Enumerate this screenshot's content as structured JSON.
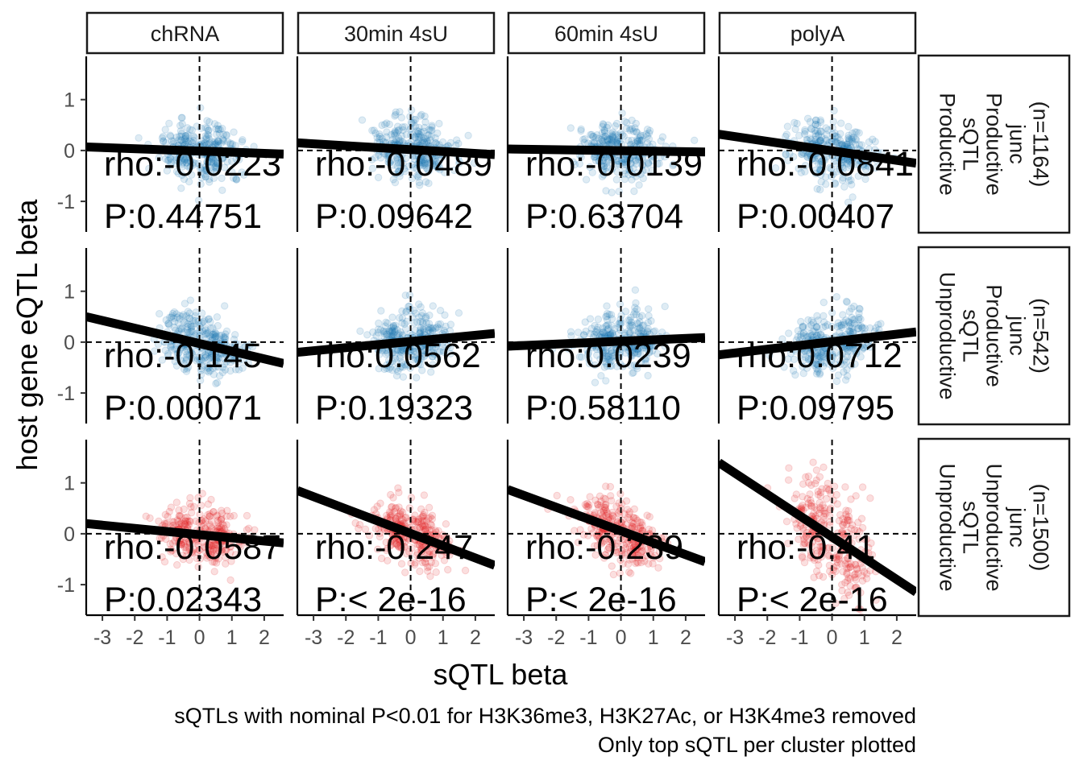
{
  "chart_data": {
    "type": "scatter",
    "layout": "facet-grid",
    "xlabel": "sQTL beta",
    "ylabel": "host gene eQTL beta",
    "xlim": [
      -3.5,
      2.6
    ],
    "ylim": [
      -1.6,
      1.85
    ],
    "x_ticks": [
      -3,
      -2,
      -1,
      0,
      1,
      2
    ],
    "x_tick_labels": [
      "-3",
      "-2",
      "-1",
      "0",
      "1",
      "2"
    ],
    "y_ticks": [
      -1,
      0,
      1
    ],
    "y_tick_labels": [
      "-1",
      "0",
      "1"
    ],
    "reference_lines": {
      "x": 0,
      "y": 0,
      "style": "dashed"
    },
    "columns": [
      "chRNA",
      "30min 4sU",
      "60min 4sU",
      "polyA"
    ],
    "rows": [
      {
        "label_lines": [
          "Productive",
          "sQTL",
          "Productive",
          "junc",
          "(n=1164)"
        ],
        "color": "#1f77b4"
      },
      {
        "label_lines": [
          "Unproductive",
          "sQTL",
          "Productive",
          "junc",
          "(n=542)"
        ],
        "color": "#1f77b4"
      },
      {
        "label_lines": [
          "Unproductive",
          "sQTL",
          "Unproductive",
          "junc",
          "(n=1500)"
        ],
        "color": "#e31a1c"
      }
    ],
    "panels": [
      [
        {
          "rho": "rho:-0.0223",
          "p": "P:0.44751",
          "fit": {
            "y_at_xmin": 0.07,
            "y_at_xmax": -0.07
          }
        },
        {
          "rho": "rho:-0.0489",
          "p": "P:0.09642",
          "fit": {
            "y_at_xmin": 0.15,
            "y_at_xmax": -0.08
          }
        },
        {
          "rho": "rho:-0.0139",
          "p": "P:0.63704",
          "fit": {
            "y_at_xmin": 0.03,
            "y_at_xmax": -0.03
          }
        },
        {
          "rho": "rho:-0.0841",
          "p": "P:0.00407",
          "fit": {
            "y_at_xmin": 0.32,
            "y_at_xmax": -0.25
          }
        }
      ],
      [
        {
          "rho": "rho:-0.145",
          "p": "P:0.00071",
          "fit": {
            "y_at_xmin": 0.5,
            "y_at_xmax": -0.42
          }
        },
        {
          "rho": "rho:0.0562",
          "p": "P:0.19323",
          "fit": {
            "y_at_xmin": -0.2,
            "y_at_xmax": 0.17
          }
        },
        {
          "rho": "rho:0.0239",
          "p": "P:0.58110",
          "fit": {
            "y_at_xmin": -0.08,
            "y_at_xmax": 0.09
          }
        },
        {
          "rho": "rho:0.0712",
          "p": "P:0.09795",
          "fit": {
            "y_at_xmin": -0.25,
            "y_at_xmax": 0.2
          }
        }
      ],
      [
        {
          "rho": "rho:-0.0587",
          "p": "P:0.02343",
          "fit": {
            "y_at_xmin": 0.2,
            "y_at_xmax": -0.18
          }
        },
        {
          "rho": "rho:-0.247",
          "p": "P:< 2e-16",
          "fit": {
            "y_at_xmin": 0.85,
            "y_at_xmax": -0.62
          }
        },
        {
          "rho": "rho:-0.239",
          "p": "P:< 2e-16",
          "fit": {
            "y_at_xmin": 0.87,
            "y_at_xmax": -0.55
          }
        },
        {
          "rho": "rho:-0.41",
          "p": "P:< 2e-16",
          "fit": {
            "y_at_xmin": 1.4,
            "y_at_xmax": -1.15
          }
        }
      ]
    ],
    "caption_lines": [
      "sQTLs with nominal P<0.01 for H3K36me3, H3K27Ac, or H3K4me3 removed",
      "Only top sQTL per cluster plotted"
    ],
    "points_per_panel_drawn": 300
  }
}
